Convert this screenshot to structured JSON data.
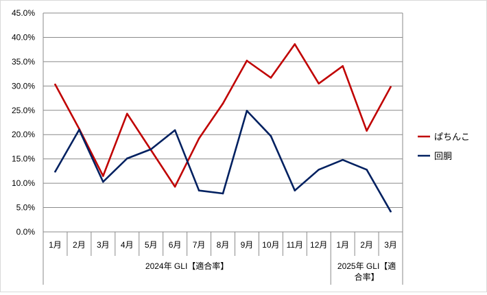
{
  "chart_data": {
    "type": "line",
    "categories": [
      "1月",
      "2月",
      "3月",
      "4月",
      "5月",
      "6月",
      "7月",
      "8月",
      "9月",
      "10月",
      "11月",
      "12月",
      "1月",
      "2月",
      "3月"
    ],
    "groups": [
      {
        "label": "2024年 GLI【適合率】",
        "span": 12,
        "lines": [
          "2024年 GLI【適合率】"
        ]
      },
      {
        "label": "2025年 GLI【適合率】",
        "span": 3,
        "lines": [
          "2025年 GLI【適",
          "合率】"
        ]
      }
    ],
    "series": [
      {
        "name": "ぱちんこ",
        "color": "#c00000",
        "values": [
          30.3,
          21.2,
          11.5,
          24.3,
          16.8,
          9.3,
          19.2,
          26.4,
          35.2,
          31.7,
          38.6,
          30.5,
          34.1,
          20.8,
          29.8
        ]
      },
      {
        "name": "回胴",
        "color": "#002060",
        "values": [
          12.4,
          21.0,
          10.3,
          15.1,
          17.0,
          20.9,
          8.5,
          7.9,
          24.9,
          19.7,
          8.5,
          12.8,
          14.8,
          12.8,
          4.2
        ]
      }
    ],
    "ylim": [
      0,
      45
    ],
    "ytick_step": 5,
    "ytick_labels": [
      "0.0%",
      "5.0%",
      "10.0%",
      "15.0%",
      "20.0%",
      "25.0%",
      "30.0%",
      "35.0%",
      "40.0%",
      "45.0%"
    ],
    "grid": true,
    "legend_position": "right"
  }
}
